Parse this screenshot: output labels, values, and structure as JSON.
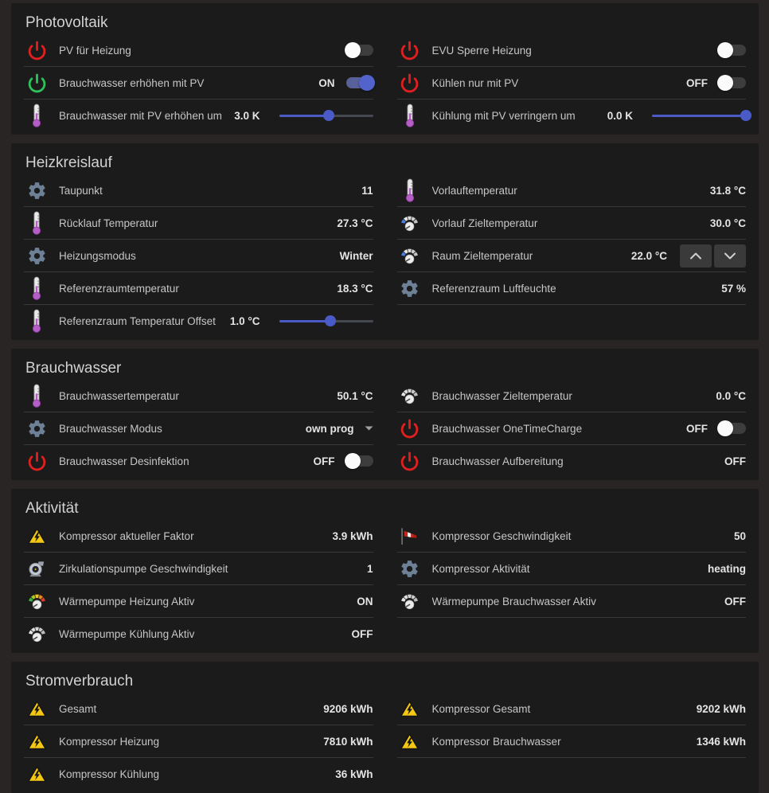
{
  "theme": {
    "page_bg": "#292525",
    "card_bg": "#1c1b1b",
    "divider": "#383838",
    "label_color": "#c6c6c6",
    "value_color": "#e4e4e4",
    "accent_blue": "#4a5ac6",
    "toggle_on_knob": "#5263cc",
    "toggle_on_track": "#59619b",
    "power_red": "#e02020",
    "power_green": "#2ec15a",
    "warning_yellow": "#f3c712"
  },
  "sections": [
    {
      "title": "Photovoltaik",
      "columns": [
        {
          "rows": [
            {
              "icon": "power-red-icon",
              "label": "PV für Heizung",
              "control": {
                "type": "toggle",
                "state": "off"
              }
            },
            {
              "icon": "power-green-icon",
              "label": "Brauchwasser erhöhen mit PV",
              "value": "ON",
              "control": {
                "type": "toggle",
                "state": "on"
              }
            },
            {
              "icon": "thermometer-icon",
              "label": "Brauchwasser mit PV erhöhen um",
              "value": "3.0 K",
              "control": {
                "type": "slider",
                "percent": 53
              }
            }
          ]
        },
        {
          "rows": [
            {
              "icon": "power-red-icon",
              "label": "EVU Sperre Heizung",
              "control": {
                "type": "toggle",
                "state": "off"
              }
            },
            {
              "icon": "power-red-icon",
              "label": "Kühlen nur mit PV",
              "value": "OFF",
              "control": {
                "type": "toggle",
                "state": "off"
              }
            },
            {
              "icon": "thermometer-icon",
              "label": "Kühlung mit PV verringern um",
              "value": "0.0 K",
              "control": {
                "type": "slider",
                "percent": 100
              }
            }
          ]
        }
      ]
    },
    {
      "title": "Heizkreislauf",
      "columns": [
        {
          "rows": [
            {
              "icon": "gear-icon",
              "label": "Taupunkt",
              "value": "11"
            },
            {
              "icon": "thermometer-icon",
              "label": "Rücklauf Temperatur",
              "value": "27.3 °C"
            },
            {
              "icon": "gear-icon",
              "label": "Heizungsmodus",
              "value": "Winter"
            },
            {
              "icon": "thermometer-icon",
              "label": "Referenzraumtemperatur",
              "value": "18.3 °C"
            },
            {
              "icon": "thermometer-icon",
              "label": "Referenzraum Temperatur Offset",
              "value": "1.0 °C",
              "control": {
                "type": "slider",
                "percent": 55
              }
            }
          ]
        },
        {
          "rows": [
            {
              "icon": "thermometer-icon",
              "label": "Vorlauftemperatur",
              "value": "31.8 °C"
            },
            {
              "icon": "gauge-blue-icon",
              "label": "Vorlauf Zieltemperatur",
              "value": "30.0 °C"
            },
            {
              "icon": "gauge-blue-icon",
              "label": "Raum Zieltemperatur",
              "value": "22.0 °C",
              "control": {
                "type": "stepper"
              }
            },
            {
              "icon": "gear-icon",
              "label": "Referenzraum Luftfeuchte",
              "value": "57 %"
            }
          ]
        }
      ]
    },
    {
      "title": "Brauchwasser",
      "columns": [
        {
          "rows": [
            {
              "icon": "thermometer-icon",
              "label": "Brauchwassertemperatur",
              "value": "50.1 °C"
            },
            {
              "icon": "gear-icon",
              "label": "Brauchwasser Modus",
              "value": "own prog",
              "control": {
                "type": "dropdown"
              }
            },
            {
              "icon": "power-red-icon",
              "label": "Brauchwasser Desinfektion",
              "value": "OFF",
              "control": {
                "type": "toggle",
                "state": "off"
              }
            }
          ]
        },
        {
          "rows": [
            {
              "icon": "gauge-gray-icon",
              "label": "Brauchwasser Zieltemperatur",
              "value": "0.0 °C"
            },
            {
              "icon": "power-red-icon",
              "label": "Brauchwasser OneTimeCharge",
              "value": "OFF",
              "control": {
                "type": "toggle",
                "state": "off"
              }
            },
            {
              "icon": "power-red-icon",
              "label": "Brauchwasser Aufbereitung",
              "value": "OFF"
            }
          ]
        }
      ]
    },
    {
      "title": "Aktivität",
      "columns": [
        {
          "rows": [
            {
              "icon": "warning-voltage-icon",
              "label": "Kompressor aktueller Faktor",
              "value": "3.9 kWh"
            },
            {
              "icon": "pump-icon",
              "label": "Zirkulationspumpe Geschwindigkeit",
              "value": "1"
            },
            {
              "icon": "gauge-rainbow-icon",
              "label": "Wärmepumpe Heizung Aktiv",
              "value": "ON"
            },
            {
              "icon": "gauge-gray-icon",
              "label": "Wärmepumpe Kühlung Aktiv",
              "value": "OFF"
            }
          ]
        },
        {
          "rows": [
            {
              "icon": "windsock-icon",
              "label": "Kompressor Geschwindigkeit",
              "value": "50"
            },
            {
              "icon": "gear-icon",
              "label": "Kompressor Aktivität",
              "value": "heating"
            },
            {
              "icon": "gauge-gray-icon",
              "label": "Wärmepumpe Brauchwasser Aktiv",
              "value": "OFF"
            }
          ]
        }
      ]
    },
    {
      "title": "Stromverbrauch",
      "columns": [
        {
          "rows": [
            {
              "icon": "warning-voltage-icon",
              "label": "Gesamt",
              "value": "9206 kWh"
            },
            {
              "icon": "warning-voltage-icon",
              "label": "Kompressor Heizung",
              "value": "7810 kWh"
            },
            {
              "icon": "warning-voltage-icon",
              "label": "Kompressor Kühlung",
              "value": "36 kWh"
            }
          ]
        },
        {
          "rows": [
            {
              "icon": "warning-voltage-icon",
              "label": "Kompressor Gesamt",
              "value": "9202 kWh"
            },
            {
              "icon": "warning-voltage-icon",
              "label": "Kompressor Brauchwasser",
              "value": "1346 kWh"
            }
          ]
        }
      ]
    }
  ]
}
